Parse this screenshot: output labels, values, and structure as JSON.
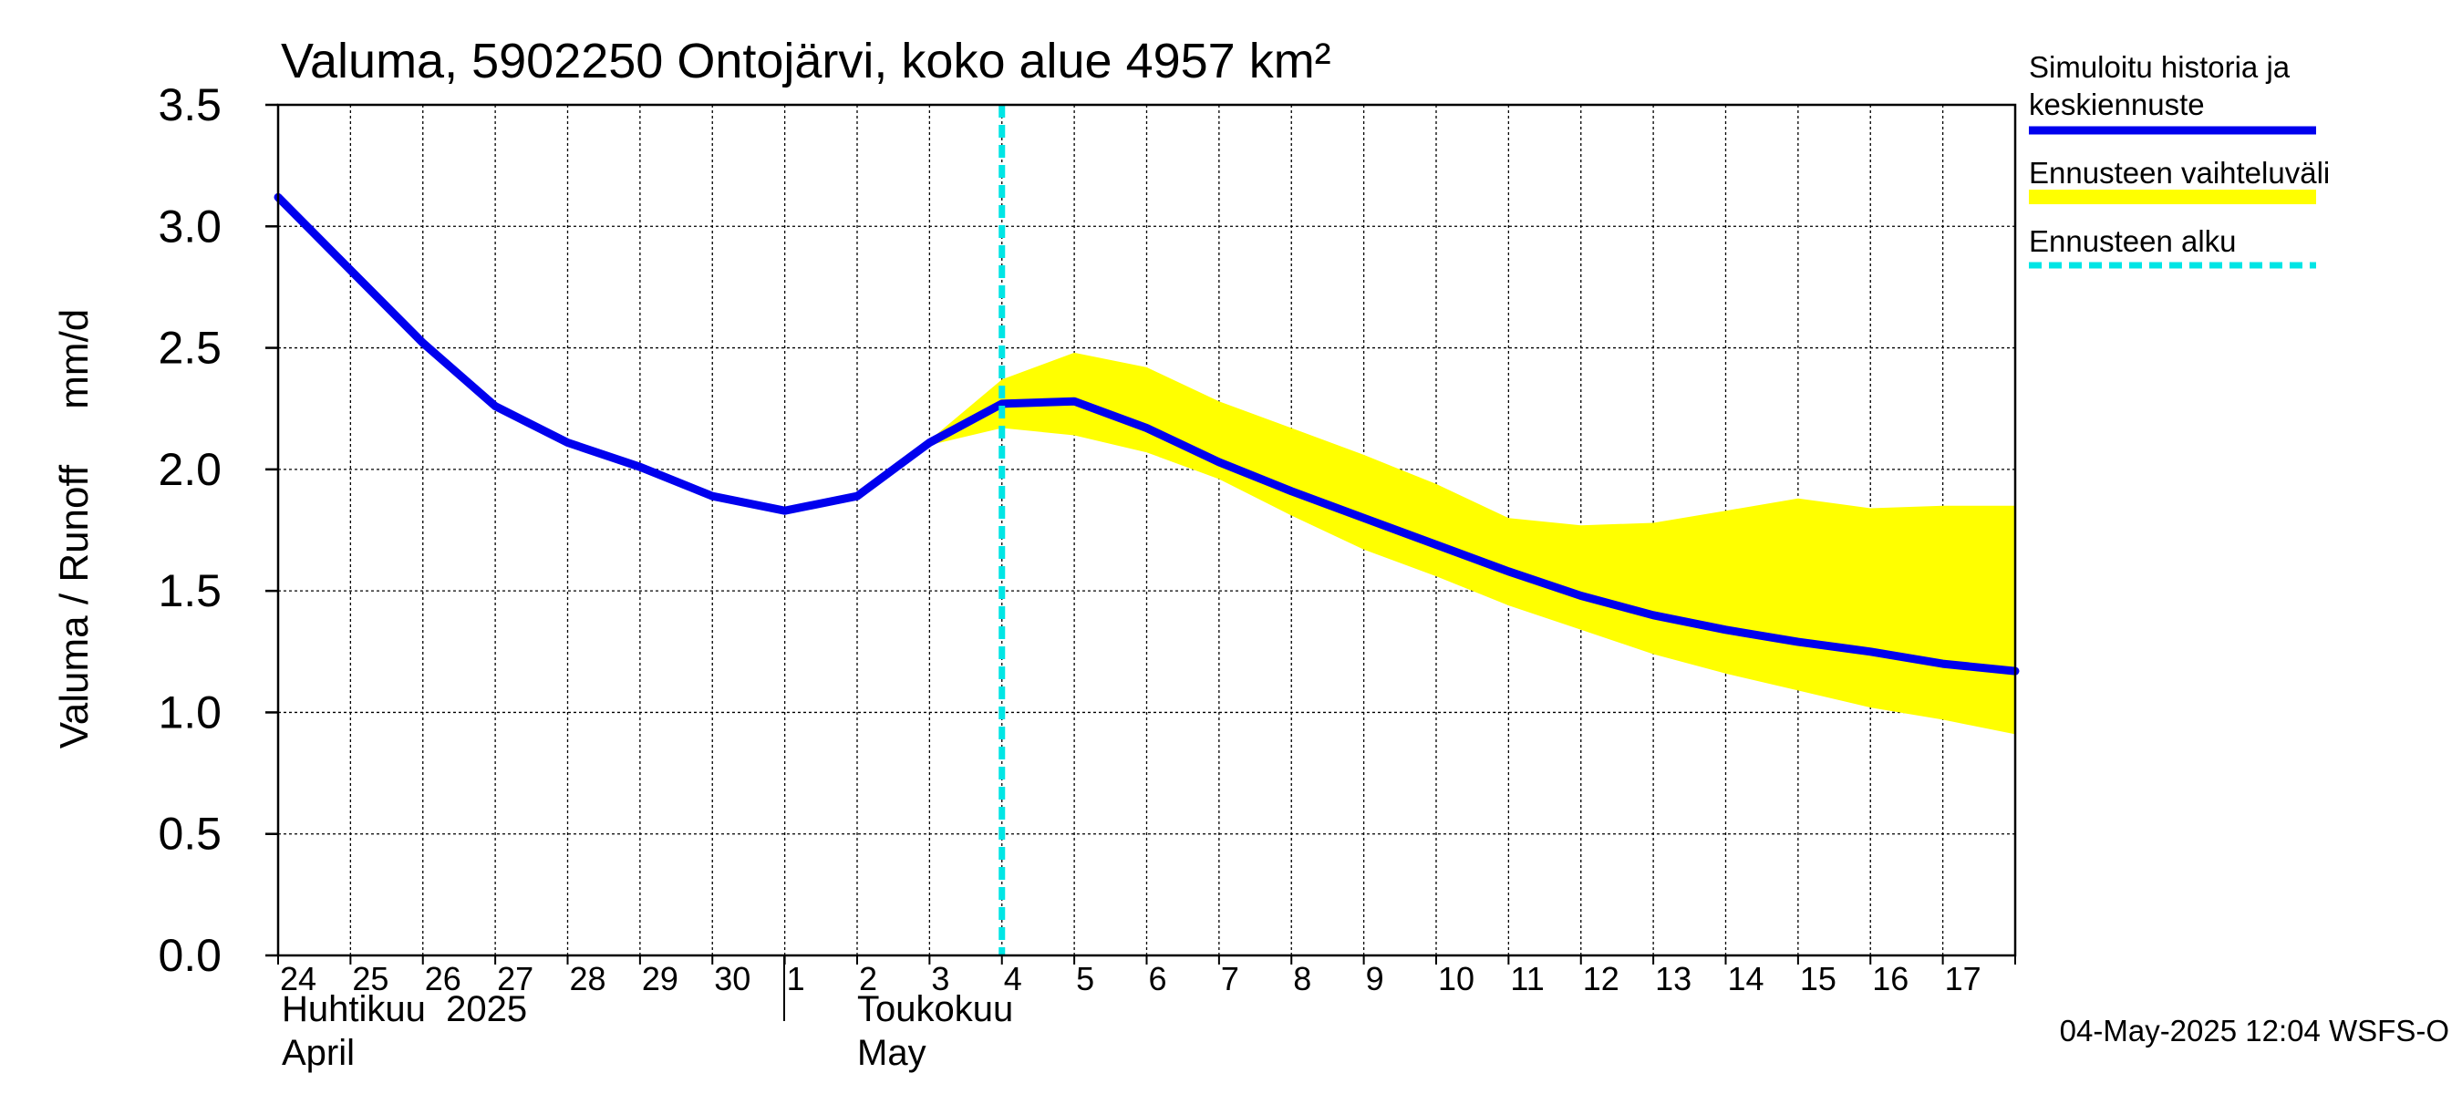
{
  "chart_data": {
    "type": "line",
    "title": "Valuma, 5902250 Ontojärvi, koko alue 4957 km²",
    "ylabel": "Valuma / Runoff     mm/d",
    "ylim": [
      0,
      3.5
    ],
    "yticks": [
      0.0,
      0.5,
      1.0,
      1.5,
      2.0,
      2.5,
      3.0,
      3.5
    ],
    "ytick_labels": [
      "0.0",
      "0.5",
      "1.0",
      "1.5",
      "2.0",
      "2.5",
      "3.0",
      "3.5"
    ],
    "x_days": [
      "24",
      "25",
      "26",
      "27",
      "28",
      "29",
      "30",
      "1",
      "2",
      "3",
      "4",
      "5",
      "6",
      "7",
      "8",
      "9",
      "10",
      "11",
      "12",
      "13",
      "14",
      "15",
      "16",
      "17"
    ],
    "month_labels": [
      {
        "fi": "Huhtikuu  2025",
        "en": "April"
      },
      {
        "fi": "Toukokuu",
        "en": "May"
      }
    ],
    "grid": true,
    "legend_position": "right",
    "series": [
      {
        "name": "Simuloitu historia ja keskiennuste",
        "color": "#0000ee",
        "x": [
          "2025-04-24",
          "2025-04-25",
          "2025-04-26",
          "2025-04-27",
          "2025-04-28",
          "2025-04-29",
          "2025-04-30",
          "2025-05-01",
          "2025-05-02",
          "2025-05-03",
          "2025-05-04",
          "2025-05-05",
          "2025-05-06",
          "2025-05-07",
          "2025-05-08",
          "2025-05-09",
          "2025-05-10",
          "2025-05-11",
          "2025-05-12",
          "2025-05-13",
          "2025-05-14",
          "2025-05-15",
          "2025-05-16",
          "2025-05-17",
          "2025-05-18"
        ],
        "values": [
          3.12,
          2.82,
          2.52,
          2.26,
          2.11,
          2.01,
          1.89,
          1.83,
          1.89,
          2.11,
          2.27,
          2.28,
          2.17,
          2.03,
          1.91,
          1.8,
          1.69,
          1.58,
          1.48,
          1.4,
          1.34,
          1.29,
          1.25,
          1.2,
          1.17
        ]
      },
      {
        "name": "Ennusteen vaihteluväli",
        "color": "#ffff00",
        "type": "band",
        "x": [
          "2025-05-03",
          "2025-05-04",
          "2025-05-05",
          "2025-05-06",
          "2025-05-07",
          "2025-05-08",
          "2025-05-09",
          "2025-05-10",
          "2025-05-11",
          "2025-05-12",
          "2025-05-13",
          "2025-05-14",
          "2025-05-15",
          "2025-05-16",
          "2025-05-17",
          "2025-05-18"
        ],
        "upper": [
          2.12,
          2.37,
          2.48,
          2.42,
          2.28,
          2.17,
          2.06,
          1.94,
          1.8,
          1.77,
          1.78,
          1.83,
          1.88,
          1.84,
          1.85,
          1.85
        ],
        "lower": [
          2.1,
          2.17,
          2.14,
          2.07,
          1.96,
          1.81,
          1.67,
          1.56,
          1.44,
          1.34,
          1.24,
          1.16,
          1.09,
          1.02,
          0.97,
          0.91
        ]
      },
      {
        "name": "Ennusteen alku",
        "color": "#00e5e5",
        "type": "vline",
        "x": "2025-05-04"
      }
    ]
  },
  "legend": {
    "item1_line1": "Simuloitu historia ja",
    "item1_line2": "keskiennuste",
    "item2": "Ennusteen vaihteluväli",
    "item3": "Ennusteen alku"
  },
  "footer": "04-May-2025 12:04 WSFS-O"
}
